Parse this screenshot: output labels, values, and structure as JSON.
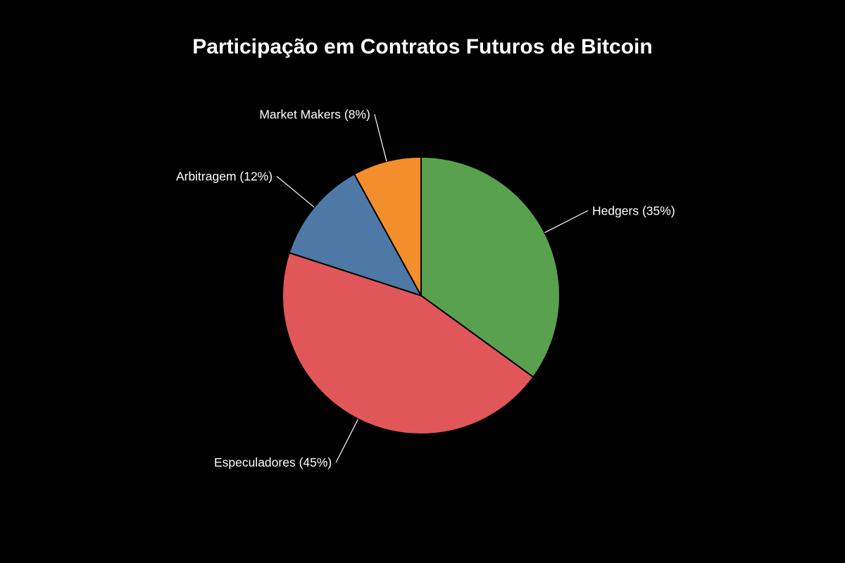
{
  "title": "Participação em Contratos Futuros de Bitcoin",
  "background_color": "#000000",
  "text_color": "#ffffff",
  "chart_data": {
    "type": "pie",
    "title": "Participação em Contratos Futuros de Bitcoin",
    "categories": [
      "Hedgers",
      "Especuladores",
      "Arbitragem",
      "Market Makers"
    ],
    "values": [
      35,
      45,
      12,
      8
    ],
    "unit": "%",
    "slice_labels": [
      "Hedgers (35%)",
      "Especuladores (45%)",
      "Arbitragem (12%)",
      "Market Makers (8%)"
    ],
    "colors": [
      "#59a14f",
      "#e15759",
      "#4e79a7",
      "#f28e2b"
    ],
    "slice_border_color": "#000000",
    "label_color": "#ffffff",
    "leader_line_color": "#ffffff",
    "start_angle": "12-oclock",
    "direction": "clockwise",
    "legend_position": "none",
    "labels_outside_with_leader_lines": true
  }
}
